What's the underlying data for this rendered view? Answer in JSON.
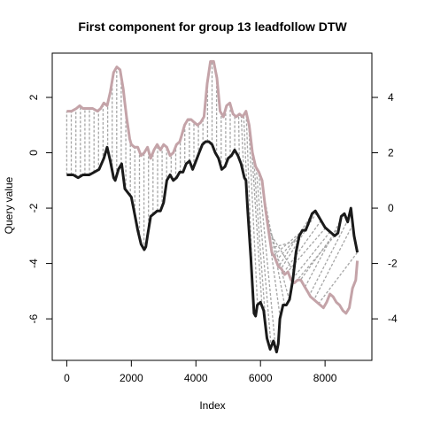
{
  "chart_data": {
    "type": "line",
    "title": "First component for group 13 leadfollow DTW",
    "xlabel": "Index",
    "ylabel": "Query value",
    "xlim": [
      -450,
      9450
    ],
    "ylim": [
      -7.5,
      3.6
    ],
    "y2lim": [
      -5.5,
      5.6
    ],
    "x_ticks": [
      0,
      2000,
      4000,
      6000,
      8000
    ],
    "y_ticks": [
      -6,
      -4,
      -2,
      0,
      2
    ],
    "y2_ticks": [
      -4,
      -2,
      0,
      2,
      4
    ],
    "grid": false,
    "legend": "none",
    "connector_color": "#a6a6a6",
    "series": [
      {
        "color": "#1a1a1a",
        "x": [
          0,
          200,
          350,
          500,
          700,
          850,
          1000,
          1150,
          1250,
          1350,
          1450,
          1500,
          1600,
          1700,
          1800,
          2000,
          2100,
          2200,
          2300,
          2400,
          2450,
          2500,
          2600,
          2700,
          2800,
          2900,
          3000,
          3100,
          3200,
          3300,
          3400,
          3500,
          3600,
          3700,
          3800,
          3900,
          4000,
          4100,
          4200,
          4300,
          4400,
          4500,
          4600,
          4700,
          4800,
          4900,
          5000,
          5100,
          5200,
          5300,
          5400,
          5500,
          5550,
          5600,
          5700,
          5800,
          5850,
          5900,
          6000,
          6100,
          6200,
          6300,
          6400,
          6500,
          6550,
          6600,
          6700,
          6800,
          6900,
          7000,
          7100,
          7200,
          7300,
          7400,
          7500,
          7600,
          7700,
          7800,
          7900,
          8000,
          8100,
          8200,
          8300,
          8400,
          8500,
          8600,
          8700,
          8800,
          8900,
          9000
        ],
        "values": [
          -0.8,
          -0.8,
          -0.9,
          -0.8,
          -0.8,
          -0.7,
          -0.6,
          -0.2,
          0.2,
          -0.3,
          -0.9,
          -1.0,
          -0.6,
          -0.4,
          -1.3,
          -1.6,
          -2.2,
          -2.8,
          -3.3,
          -3.5,
          -3.4,
          -3.0,
          -2.3,
          -2.2,
          -2.1,
          -2.1,
          -1.8,
          -1.0,
          -0.8,
          -1.0,
          -0.9,
          -0.7,
          -0.7,
          -0.4,
          -0.3,
          -0.6,
          -0.3,
          0.0,
          0.3,
          0.4,
          0.4,
          0.3,
          0.0,
          -0.2,
          -0.6,
          -0.5,
          -0.2,
          -0.1,
          0.1,
          -0.1,
          -0.4,
          -0.9,
          -1.0,
          -2.0,
          -3.8,
          -5.8,
          -5.9,
          -5.5,
          -5.4,
          -5.7,
          -6.7,
          -7.1,
          -6.8,
          -7.2,
          -6.9,
          -6.0,
          -5.5,
          -5.5,
          -5.3,
          -4.6,
          -3.6,
          -3.0,
          -2.8,
          -2.8,
          -2.5,
          -2.2,
          -2.1,
          -2.3,
          -2.5,
          -2.7,
          -2.8,
          -2.9,
          -3.0,
          -2.9,
          -2.3,
          -2.2,
          -2.5,
          -2.0,
          -3.0,
          -3.6
        ]
      },
      {
        "color": "#c4a3a8",
        "x": [
          0,
          150,
          300,
          400,
          500,
          650,
          800,
          950,
          1050,
          1150,
          1250,
          1350,
          1450,
          1550,
          1650,
          1750,
          1800,
          1850,
          1950,
          2000,
          2100,
          2200,
          2300,
          2400,
          2500,
          2600,
          2700,
          2800,
          2900,
          3000,
          3100,
          3200,
          3300,
          3400,
          3500,
          3550,
          3650,
          3750,
          3850,
          3950,
          4050,
          4150,
          4250,
          4350,
          4450,
          4550,
          4650,
          4750,
          4850,
          4950,
          5050,
          5150,
          5250,
          5350,
          5450,
          5550,
          5650,
          5750,
          5850,
          5950,
          6050,
          6150,
          6250,
          6350,
          6450,
          6550,
          6650,
          6750,
          6850,
          6950,
          7050,
          7150,
          7250,
          7350,
          7450,
          7550,
          7650,
          7750,
          7850,
          7950,
          8050,
          8150,
          8250,
          8350,
          8450,
          8550,
          8650,
          8750,
          8850,
          8950,
          9000
        ],
        "values": [
          3.5,
          3.5,
          3.6,
          3.7,
          3.6,
          3.6,
          3.6,
          3.5,
          3.6,
          3.8,
          3.7,
          4.2,
          4.9,
          5.1,
          5.0,
          4.3,
          3.8,
          3.3,
          2.5,
          2.3,
          2.2,
          2.2,
          1.9,
          2.0,
          2.2,
          1.8,
          2.1,
          2.3,
          2.1,
          2.3,
          2.2,
          1.9,
          2.0,
          2.3,
          2.4,
          2.6,
          3.0,
          3.2,
          3.2,
          3.1,
          3.0,
          3.1,
          3.3,
          4.5,
          5.3,
          5.3,
          4.7,
          3.5,
          3.3,
          3.7,
          3.8,
          3.4,
          3.3,
          3.4,
          3.3,
          3.5,
          3.0,
          2.0,
          1.5,
          1.3,
          1.0,
          0.0,
          -0.8,
          -1.6,
          -1.8,
          -2.1,
          -2.2,
          -2.4,
          -2.3,
          -2.6,
          -2.7,
          -2.6,
          -2.6,
          -2.8,
          -3.0,
          -3.2,
          -3.3,
          -3.4,
          -3.5,
          -3.6,
          -3.4,
          -3.1,
          -3.2,
          -3.4,
          -3.5,
          -3.7,
          -3.8,
          -3.6,
          -2.9,
          -2.6,
          -1.9
        ]
      }
    ]
  }
}
